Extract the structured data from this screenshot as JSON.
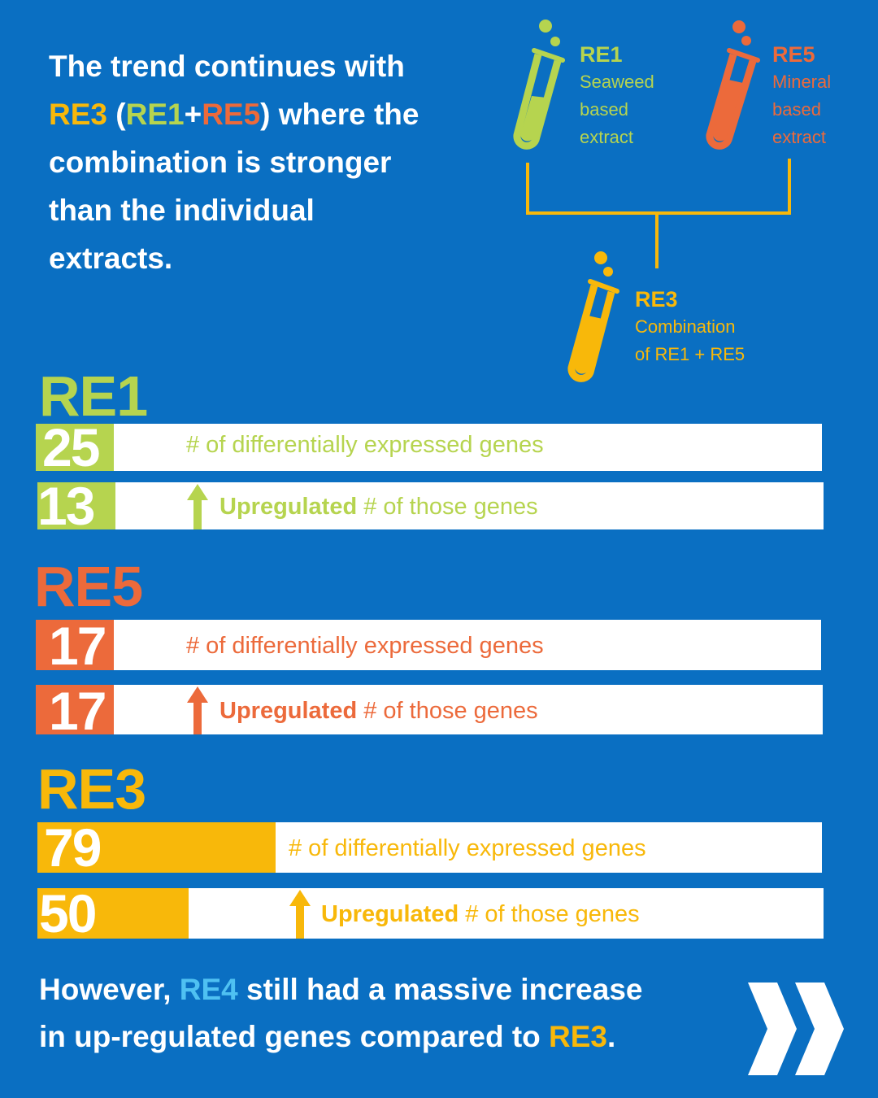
{
  "intro": {
    "line1": "The trend continues with",
    "re3": "RE3",
    "open_paren": " (",
    "re1": "RE1",
    "plus": "+",
    "re5": "RE5",
    "close_rest": ") where the",
    "line3": "combination is stronger",
    "line4": "than the individual",
    "line5": "extracts."
  },
  "diagram": {
    "re1": {
      "name": "RE1",
      "desc1": "Seaweed",
      "desc2": "based",
      "desc3": "extract"
    },
    "re5": {
      "name": "RE5",
      "desc1": "Mineral",
      "desc2": "based",
      "desc3": "extract"
    },
    "re3": {
      "name": "RE3",
      "desc1": "Combination",
      "desc2": "of RE1 + RE5"
    }
  },
  "colors": {
    "background": "#0a6fc2",
    "re1": "#b6d44f",
    "re5": "#ec6a3b",
    "re3": "#f8b80a",
    "re4": "#4fc1f2"
  },
  "chart_data": {
    "type": "bar",
    "orientation": "horizontal",
    "metric_labels": {
      "total": "# of differentially expressed genes",
      "up_bold": "Upregulated",
      "up_rest": " # of those genes"
    },
    "series": [
      {
        "name": "RE1",
        "differentially_expressed": 25,
        "upregulated": 13
      },
      {
        "name": "RE5",
        "differentially_expressed": 17,
        "upregulated": 17
      },
      {
        "name": "RE3",
        "differentially_expressed": 79,
        "upregulated": 50
      }
    ]
  },
  "outro": {
    "p1": "However, ",
    "re4": "RE4",
    "p2": " still had a massive increase",
    "p3": "in up-regulated genes compared to ",
    "re3": "RE3",
    "p4": "."
  },
  "next_icon": "double-chevron-right-icon"
}
